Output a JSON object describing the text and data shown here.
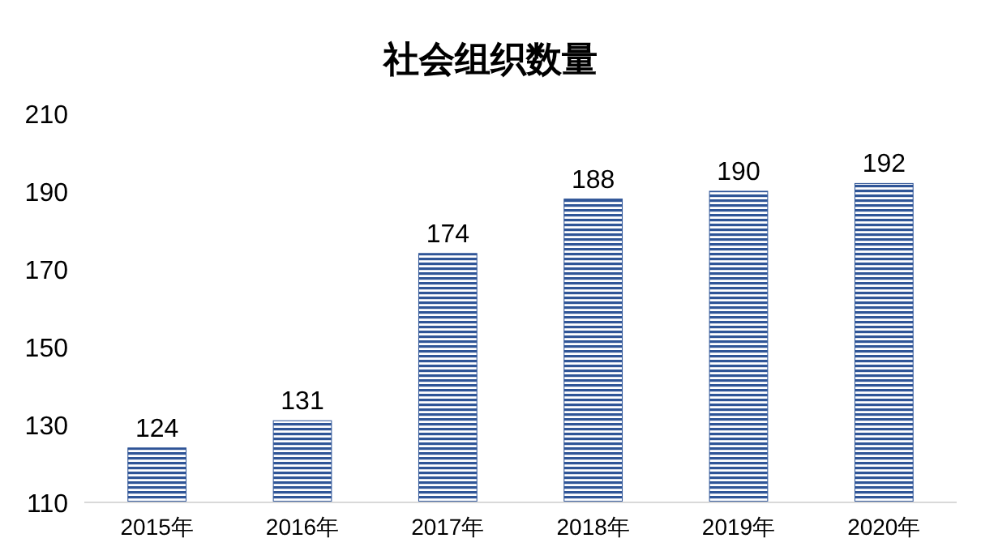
{
  "chart_data": {
    "type": "bar",
    "title": "社会组织数量",
    "categories": [
      "2015年",
      "2016年",
      "2017年",
      "2018年",
      "2019年",
      "2020年"
    ],
    "values": [
      124,
      131,
      174,
      188,
      190,
      192
    ],
    "color": "#2f5597",
    "ylim": [
      110,
      210
    ],
    "yticks": [
      110,
      130,
      150,
      170,
      190,
      210
    ],
    "data_labels": true
  }
}
